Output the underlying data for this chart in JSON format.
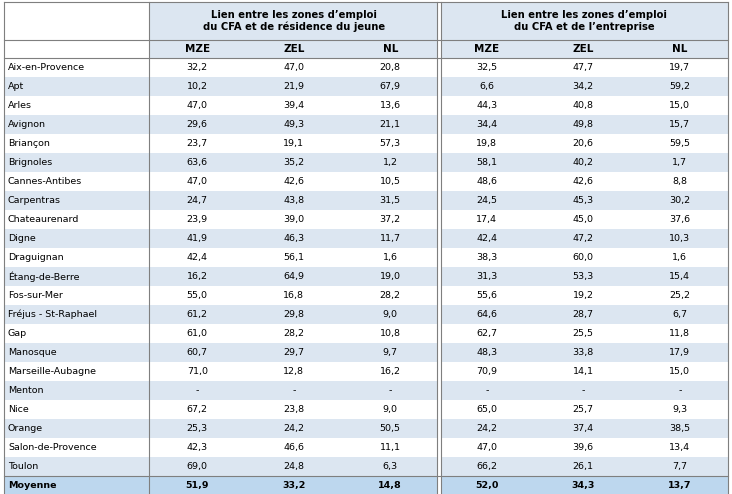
{
  "header1": "Lien entre les zones d’emploi\ndu CFA et de résidence du jeune",
  "header2": "Lien entre les zones d’emploi\ndu CFA et de l’entreprise",
  "col_headers": [
    "MZE",
    "ZEL",
    "NL",
    "MZE",
    "ZEL",
    "NL"
  ],
  "rows": [
    [
      "Aix-en-Provence",
      "32,2",
      "47,0",
      "20,8",
      "32,5",
      "47,7",
      "19,7"
    ],
    [
      "Apt",
      "10,2",
      "21,9",
      "67,9",
      "6,6",
      "34,2",
      "59,2"
    ],
    [
      "Arles",
      "47,0",
      "39,4",
      "13,6",
      "44,3",
      "40,8",
      "15,0"
    ],
    [
      "Avignon",
      "29,6",
      "49,3",
      "21,1",
      "34,4",
      "49,8",
      "15,7"
    ],
    [
      "Briançon",
      "23,7",
      "19,1",
      "57,3",
      "19,8",
      "20,6",
      "59,5"
    ],
    [
      "Brignoles",
      "63,6",
      "35,2",
      "1,2",
      "58,1",
      "40,2",
      "1,7"
    ],
    [
      "Cannes-Antibes",
      "47,0",
      "42,6",
      "10,5",
      "48,6",
      "42,6",
      "8,8"
    ],
    [
      "Carpentras",
      "24,7",
      "43,8",
      "31,5",
      "24,5",
      "45,3",
      "30,2"
    ],
    [
      "Chateaurenard",
      "23,9",
      "39,0",
      "37,2",
      "17,4",
      "45,0",
      "37,6"
    ],
    [
      "Digne",
      "41,9",
      "46,3",
      "11,7",
      "42,4",
      "47,2",
      "10,3"
    ],
    [
      "Draguignan",
      "42,4",
      "56,1",
      "1,6",
      "38,3",
      "60,0",
      "1,6"
    ],
    [
      "Étang-de-Berre",
      "16,2",
      "64,9",
      "19,0",
      "31,3",
      "53,3",
      "15,4"
    ],
    [
      "Fos-sur-Mer",
      "55,0",
      "16,8",
      "28,2",
      "55,6",
      "19,2",
      "25,2"
    ],
    [
      "Fréjus - St-Raphael",
      "61,2",
      "29,8",
      "9,0",
      "64,6",
      "28,7",
      "6,7"
    ],
    [
      "Gap",
      "61,0",
      "28,2",
      "10,8",
      "62,7",
      "25,5",
      "11,8"
    ],
    [
      "Manosque",
      "60,7",
      "29,7",
      "9,7",
      "48,3",
      "33,8",
      "17,9"
    ],
    [
      "Marseille-Aubagne",
      "71,0",
      "12,8",
      "16,2",
      "70,9",
      "14,1",
      "15,0"
    ],
    [
      "Menton",
      "-",
      "-",
      "-",
      "-",
      "-",
      "-"
    ],
    [
      "Nice",
      "67,2",
      "23,8",
      "9,0",
      "65,0",
      "25,7",
      "9,3"
    ],
    [
      "Orange",
      "25,3",
      "24,2",
      "50,5",
      "24,2",
      "37,4",
      "38,5"
    ],
    [
      "Salon-de-Provence",
      "42,3",
      "46,6",
      "11,1",
      "47,0",
      "39,6",
      "13,4"
    ],
    [
      "Toulon",
      "69,0",
      "24,8",
      "6,3",
      "66,2",
      "26,1",
      "7,7"
    ],
    [
      "Moyenne",
      "51,9",
      "33,2",
      "14,8",
      "52,0",
      "34,3",
      "13,7"
    ]
  ],
  "bold_rows": [
    "Moyenne"
  ],
  "bg_color_even": "#dce6f1",
  "bg_color_odd": "#ffffff",
  "bg_color_header_row": "#dce6f1",
  "bg_color_moyenne": "#bdd7ee",
  "fig_width": 7.32,
  "fig_height": 4.94,
  "dpi": 100
}
